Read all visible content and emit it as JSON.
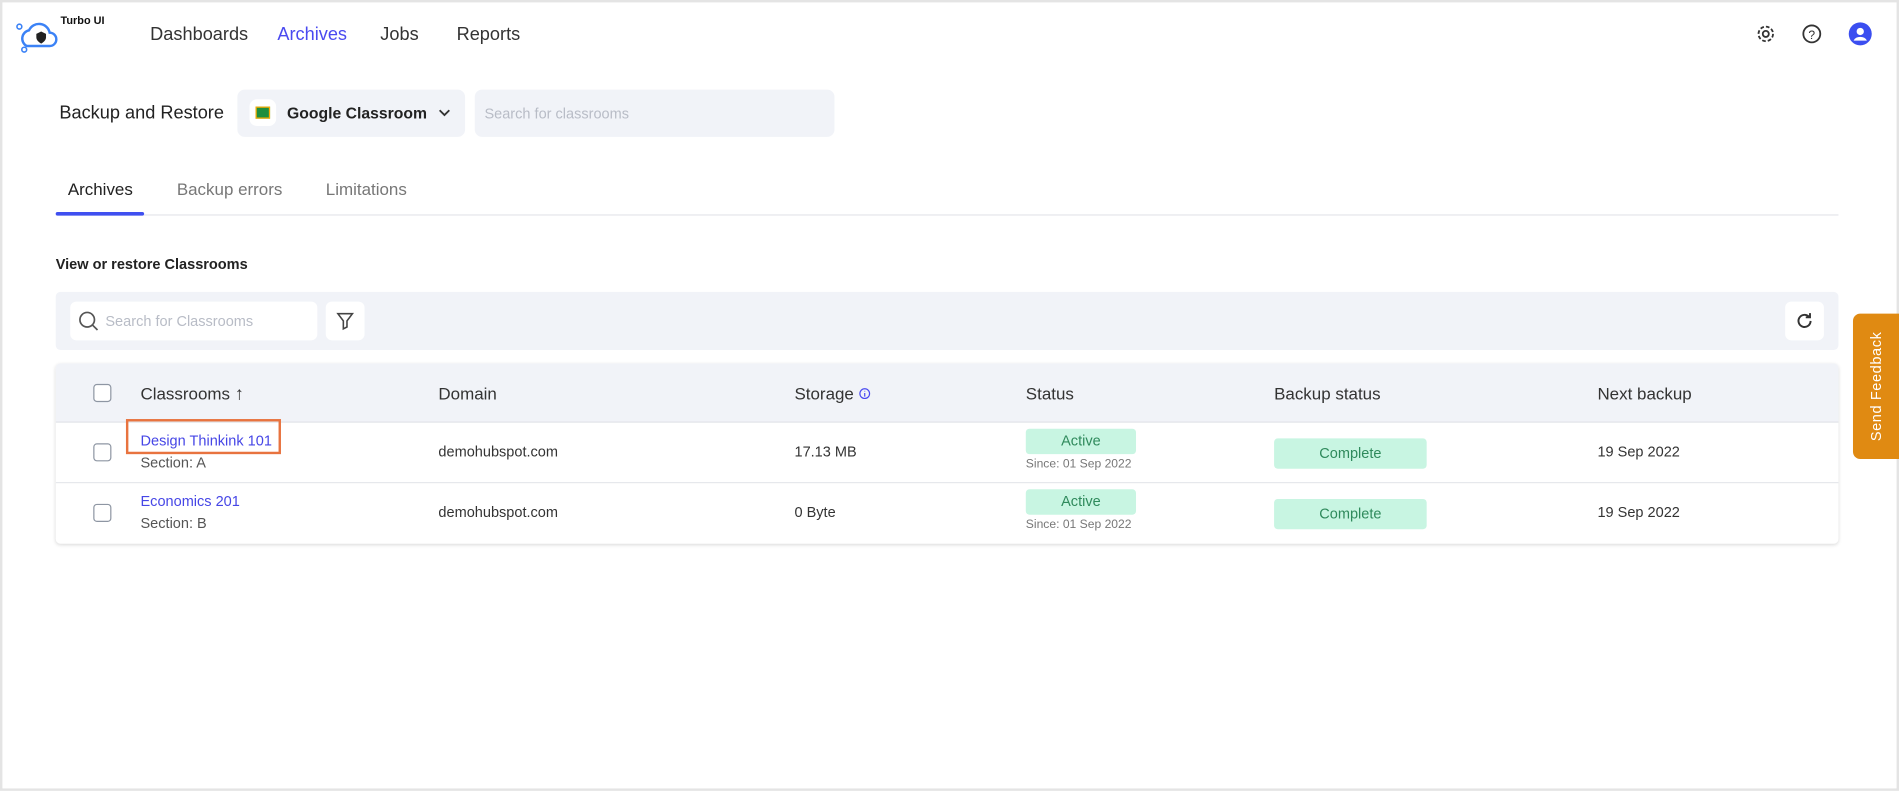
{
  "app": {
    "name": "Turbo UI"
  },
  "nav": {
    "items": [
      {
        "label": "Dashboards"
      },
      {
        "label": "Archives",
        "active": true
      },
      {
        "label": "Jobs"
      },
      {
        "label": "Reports"
      }
    ]
  },
  "header_icons": [
    "gear-icon",
    "help-icon",
    "user-avatar-icon"
  ],
  "page": {
    "title": "Backup and Restore",
    "source_select": "Google Classroom",
    "search_placeholder": "Search for classrooms"
  },
  "tabs": [
    {
      "label": "Archives",
      "active": true
    },
    {
      "label": "Backup errors"
    },
    {
      "label": "Limitations"
    }
  ],
  "section": {
    "title": "View or restore Classrooms",
    "search_placeholder": "Search for Classrooms"
  },
  "table": {
    "columns": [
      "Classrooms",
      "Domain",
      "Storage",
      "Status",
      "Backup status",
      "Next backup"
    ],
    "sort": {
      "column": "Classrooms",
      "direction": "ascending"
    },
    "rows": [
      {
        "name": "Design Thinkink 101",
        "section": "Section: A",
        "domain": "demohubspot.com",
        "storage": "17.13 MB",
        "status": "Active",
        "since": "Since: 01 Sep 2022",
        "backup_status": "Complete",
        "next_backup": "19 Sep 2022",
        "highlighted": true
      },
      {
        "name": "Economics 201",
        "section": "Section: B",
        "domain": "demohubspot.com",
        "storage": "0 Byte",
        "status": "Active",
        "since": "Since: 01 Sep 2022",
        "backup_status": "Complete",
        "next_backup": "19 Sep 2022"
      }
    ]
  },
  "feedback": {
    "label": "Send Feedback"
  },
  "colors": {
    "accent": "#4a4af0",
    "feedback": "#e08a12",
    "badge_bg": "#c8f5e2",
    "highlight": "#e8733f"
  }
}
